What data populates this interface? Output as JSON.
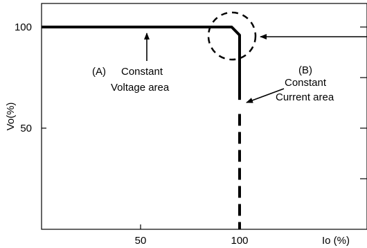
{
  "chart_data": {
    "type": "line",
    "title": "",
    "xlabel": "Io (%)",
    "ylabel": "Vo(%)",
    "xlim": [
      0,
      150
    ],
    "ylim": [
      0,
      105
    ],
    "grid": false,
    "legend": "none",
    "x_ticks": [
      {
        "value": 50,
        "label": "50"
      },
      {
        "value": 100,
        "label": "100"
      }
    ],
    "y_ticks": [
      {
        "value": 50,
        "label": "50"
      },
      {
        "value": 100,
        "label": "100"
      }
    ],
    "right_ticks": [
      100,
      75,
      50,
      25
    ],
    "series": [
      {
        "style": "solid",
        "x": [
          0,
          96,
          100,
          100
        ],
        "y": [
          100,
          100,
          96,
          64
        ]
      },
      {
        "style": "dashed",
        "x": [
          100,
          100
        ],
        "y": [
          57,
          0
        ]
      }
    ],
    "annotations": [
      {
        "name": "label-a",
        "lines": [
          "(A)",
          "Constant",
          "Voltage area"
        ]
      },
      {
        "name": "label-b",
        "lines": [
          "(B)",
          "Constant",
          "Current area"
        ]
      }
    ],
    "colors": {
      "line": "#000000",
      "axes": "#000000",
      "background": "#ffffff"
    }
  }
}
